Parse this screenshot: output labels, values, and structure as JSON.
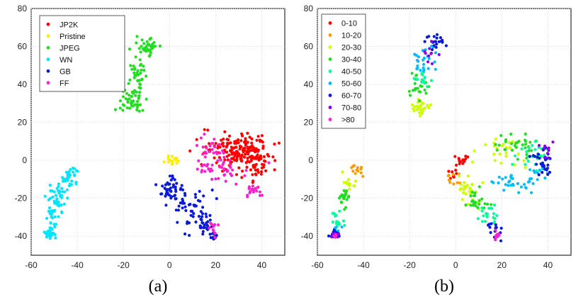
{
  "chart_data": [
    {
      "type": "scatter",
      "title": "",
      "xlabel": "",
      "ylabel": "",
      "xlim": [
        -60,
        50
      ],
      "ylim": [
        -50,
        80
      ],
      "xticks": [
        -60,
        -40,
        -20,
        0,
        20,
        40
      ],
      "yticks": [
        -40,
        -20,
        0,
        20,
        40,
        60,
        80
      ],
      "grid": true,
      "legend_position": "top-left",
      "caption": "(a)",
      "series": [
        {
          "name": "JP2K",
          "color": "#ff0000",
          "clusters": [
            {
              "cx": 32,
              "cy": 3,
              "sx": 6,
              "sy": 5,
              "n": 140
            },
            {
              "cx": 24,
              "cy": 8,
              "sx": 6,
              "sy": 3,
              "n": 40
            },
            {
              "cx": 38,
              "cy": -2,
              "sx": 2,
              "sy": 5,
              "n": 25
            }
          ]
        },
        {
          "name": "Pristine",
          "color": "#ffee00",
          "clusters": [
            {
              "cx": 2,
              "cy": 0,
              "sx": 1.5,
              "sy": 1.5,
              "n": 20
            }
          ]
        },
        {
          "name": "JPEG",
          "color": "#22dd22",
          "clusters": [
            {
              "cx": -9,
              "cy": 60,
              "sx": 2,
              "sy": 3,
              "n": 35
            },
            {
              "cx": -14,
              "cy": 45,
              "sx": 2,
              "sy": 7,
              "n": 40
            },
            {
              "cx": -16,
              "cy": 31,
              "sx": 3,
              "sy": 4,
              "n": 45
            }
          ]
        },
        {
          "name": "WN",
          "color": "#00e5ff",
          "clusters": [
            {
              "cx": -43,
              "cy": -9,
              "sx": 2,
              "sy": 2.5,
              "n": 35
            },
            {
              "cx": -48,
              "cy": -20,
              "sx": 2,
              "sy": 5,
              "n": 40
            },
            {
              "cx": -51,
              "cy": -31,
              "sx": 1.2,
              "sy": 4,
              "n": 25
            },
            {
              "cx": -52,
              "cy": -39,
              "sx": 1,
              "sy": 1,
              "n": 35
            }
          ]
        },
        {
          "name": "GB",
          "color": "#0a1ad8",
          "clusters": [
            {
              "cx": 1,
              "cy": -15,
              "sx": 3,
              "sy": 4,
              "n": 45
            },
            {
              "cx": 9,
              "cy": -25,
              "sx": 4,
              "sy": 5,
              "n": 45
            },
            {
              "cx": 15,
              "cy": -35,
              "sx": 2,
              "sy": 2.5,
              "n": 25
            },
            {
              "cx": 19,
              "cy": -40,
              "sx": 0.8,
              "sy": 1,
              "n": 12
            }
          ]
        },
        {
          "name": "FF",
          "color": "#ff22cc",
          "clusters": [
            {
              "cx": 17,
              "cy": 7,
              "sx": 4,
              "sy": 3,
              "n": 25
            },
            {
              "cx": 22,
              "cy": -5,
              "sx": 6,
              "sy": 3,
              "n": 40
            },
            {
              "cx": 36,
              "cy": -16,
              "sx": 2,
              "sy": 1.5,
              "n": 20
            },
            {
              "cx": 19,
              "cy": -36,
              "sx": 1,
              "sy": 2,
              "n": 10
            }
          ]
        }
      ]
    },
    {
      "type": "scatter",
      "title": "",
      "xlabel": "",
      "ylabel": "",
      "xlim": [
        -60,
        50
      ],
      "ylim": [
        -50,
        80
      ],
      "xticks": [
        -60,
        -40,
        -20,
        0,
        20,
        40
      ],
      "yticks": [
        -40,
        -20,
        0,
        20,
        40,
        60,
        80
      ],
      "grid": true,
      "legend_position": "top-left",
      "caption": "(b)",
      "series": [
        {
          "name": "0-10",
          "color": "#ff0000",
          "clusters": [
            {
              "cx": 3,
              "cy": 0,
              "sx": 1.5,
              "sy": 1.5,
              "n": 15
            },
            {
              "cx": -1,
              "cy": -7,
              "sx": 1.5,
              "sy": 2,
              "n": 8
            }
          ]
        },
        {
          "name": "10-20",
          "color": "#ff9900",
          "clusters": [
            {
              "cx": -43,
              "cy": -6,
              "sx": 1.5,
              "sy": 1.5,
              "n": 12
            },
            {
              "cx": -1,
              "cy": -10,
              "sx": 2,
              "sy": 3,
              "n": 10
            }
          ]
        },
        {
          "name": "20-30",
          "color": "#ccff00",
          "clusters": [
            {
              "cx": -15,
              "cy": 28,
              "sx": 2,
              "sy": 2,
              "n": 30
            },
            {
              "cx": -46,
              "cy": -12,
              "sx": 1.5,
              "sy": 2,
              "n": 15
            },
            {
              "cx": 5,
              "cy": -15,
              "sx": 3,
              "sy": 4,
              "n": 30
            },
            {
              "cx": 20,
              "cy": 5,
              "sx": 5,
              "sy": 4,
              "n": 25
            }
          ]
        },
        {
          "name": "30-40",
          "color": "#22dd22",
          "clusters": [
            {
              "cx": -17,
              "cy": 38,
              "sx": 2,
              "sy": 3,
              "n": 20
            },
            {
              "cx": -49,
              "cy": -20,
              "sx": 1.5,
              "sy": 3,
              "n": 20
            },
            {
              "cx": 10,
              "cy": -22,
              "sx": 3,
              "sy": 3,
              "n": 25
            },
            {
              "cx": 26,
              "cy": 8,
              "sx": 5,
              "sy": 3,
              "n": 30
            }
          ]
        },
        {
          "name": "40-50",
          "color": "#00ff99",
          "clusters": [
            {
              "cx": -14,
              "cy": 43,
              "sx": 2,
              "sy": 3,
              "n": 15
            },
            {
              "cx": -51,
              "cy": -30,
              "sx": 1.2,
              "sy": 3,
              "n": 15
            },
            {
              "cx": 14,
              "cy": -28,
              "sx": 2,
              "sy": 3,
              "n": 20
            },
            {
              "cx": 33,
              "cy": 2,
              "sx": 4,
              "sy": 3,
              "n": 25
            }
          ]
        },
        {
          "name": "50-60",
          "color": "#00bbff",
          "clusters": [
            {
              "cx": -13,
              "cy": 52,
              "sx": 2,
              "sy": 4,
              "n": 25
            },
            {
              "cx": -52,
              "cy": -36,
              "sx": 1,
              "sy": 2,
              "n": 12
            },
            {
              "cx": 24,
              "cy": -12,
              "sx": 5,
              "sy": 3,
              "n": 25
            },
            {
              "cx": 36,
              "cy": -8,
              "sx": 3,
              "sy": 3,
              "n": 15
            }
          ]
        },
        {
          "name": "60-70",
          "color": "#0a1ad8",
          "clusters": [
            {
              "cx": -8,
              "cy": 62,
              "sx": 2,
              "sy": 2,
              "n": 20
            },
            {
              "cx": -53,
              "cy": -39,
              "sx": 1,
              "sy": 0.8,
              "n": 20
            },
            {
              "cx": 17,
              "cy": -36,
              "sx": 2,
              "sy": 2,
              "n": 15
            },
            {
              "cx": 38,
              "cy": 0,
              "sx": 2,
              "sy": 5,
              "n": 30
            }
          ]
        },
        {
          "name": "70-80",
          "color": "#8800ee",
          "clusters": [
            {
              "cx": -11,
              "cy": 58,
              "sx": 2,
              "sy": 3,
              "n": 10
            },
            {
              "cx": -52,
              "cy": -39,
              "sx": 1,
              "sy": 0.8,
              "n": 8
            },
            {
              "cx": 39,
              "cy": 7,
              "sx": 2,
              "sy": 2,
              "n": 10
            }
          ]
        },
        {
          "name": ">80",
          "color": "#ff22cc",
          "clusters": [
            {
              "cx": 18,
              "cy": -40,
              "sx": 0.8,
              "sy": 1,
              "n": 10
            },
            {
              "cx": -52,
              "cy": -40,
              "sx": 0.8,
              "sy": 0.6,
              "n": 6
            }
          ]
        }
      ]
    }
  ]
}
